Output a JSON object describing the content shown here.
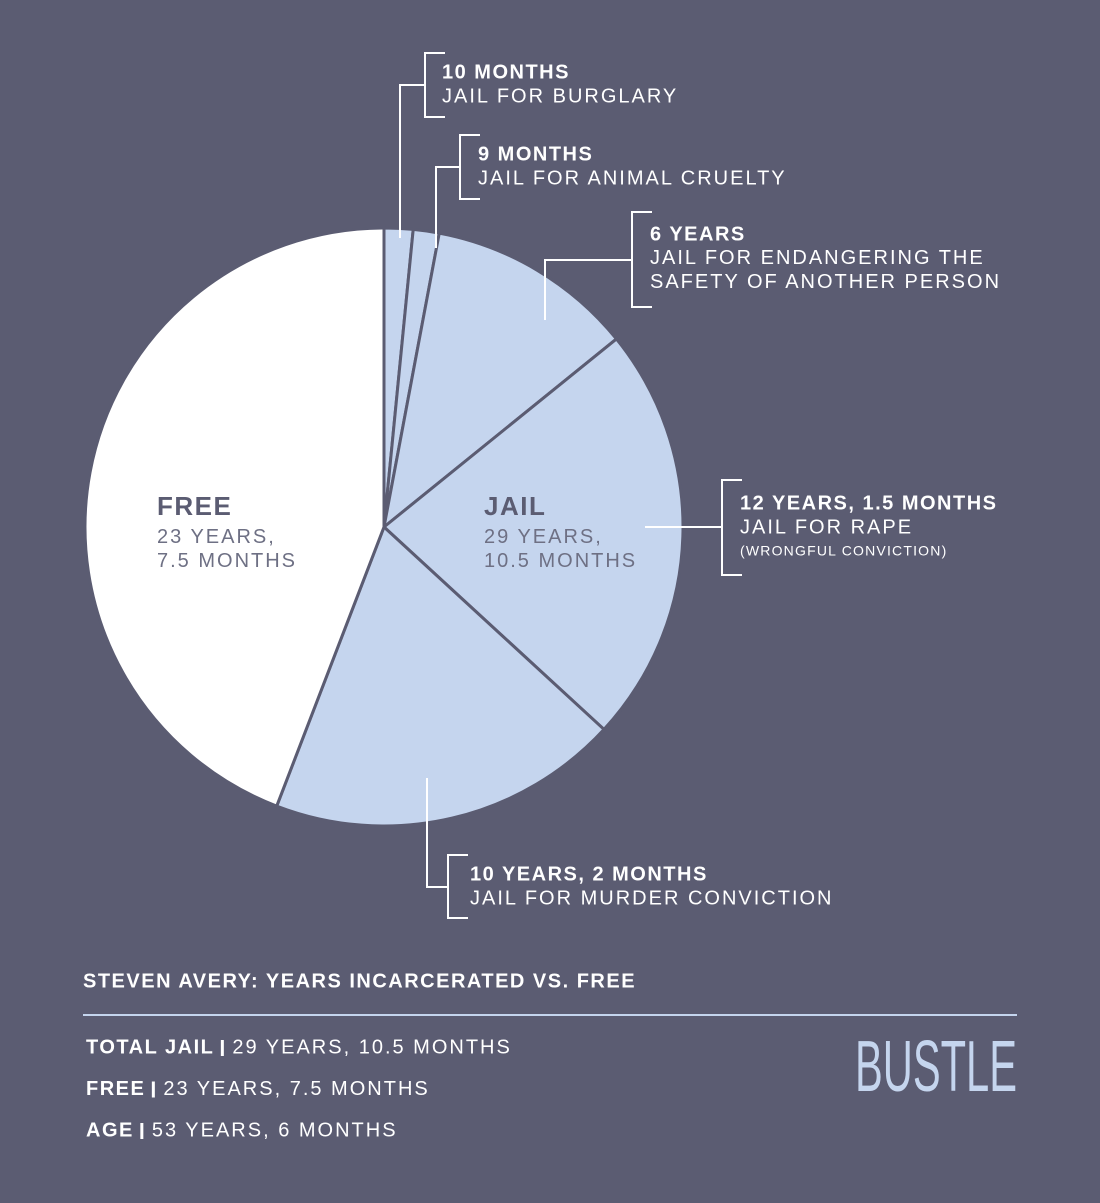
{
  "chart_data": {
    "type": "pie",
    "title": "STEVEN AVERY: YEARS INCARCERATED VS. FREE",
    "categories": [
      "JAIL FOR BURGLARY",
      "JAIL FOR ANIMAL CRUELTY",
      "JAIL FOR ENDANGERING THE SAFETY OF ANOTHER PERSON",
      "JAIL FOR RAPE",
      "JAIL FOR MURDER CONVICTION",
      "FREE"
    ],
    "values": [
      10,
      9,
      72,
      145.5,
      122,
      283.5
    ],
    "value_labels": [
      "10 MONTHS",
      "9 MONTHS",
      "6 YEARS",
      "12 YEARS, 1.5 MONTHS",
      "10 YEARS, 2 MONTHS",
      "23 YEARS, 7.5 MONTHS"
    ],
    "colors": [
      "#c5d5ee",
      "#c5d5ee",
      "#c5d5ee",
      "#c5d5ee",
      "#c5d5ee",
      "#ffffff"
    ],
    "annotation": "(WRONGFUL CONVICTION)",
    "group_label": {
      "label": "JAIL",
      "text": "29 YEARS, 10.5 MONTHS"
    },
    "summary": [
      {
        "label": "TOTAL JAIL",
        "text": "29 YEARS, 10.5 MONTHS"
      },
      {
        "label": "FREE",
        "text": "23 YEARS, 7.5 MONTHS"
      },
      {
        "label": "AGE",
        "text": "53 YEARS, 6 MONTHS"
      }
    ],
    "brand": "BUSTLE"
  }
}
